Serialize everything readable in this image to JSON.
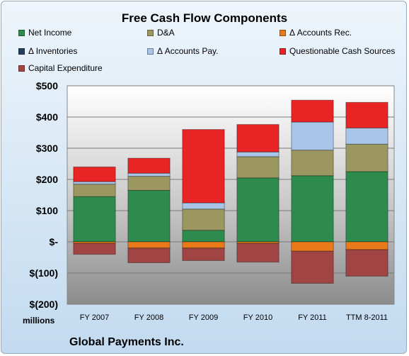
{
  "chart_data": {
    "type": "bar",
    "stacked": true,
    "title": "Free Cash Flow Components",
    "categories": [
      "FY 2007",
      "FY 2008",
      "FY 2009",
      "FY 2010",
      "FY 2011",
      "TTM 8-2011"
    ],
    "ylim": [
      -200,
      500
    ],
    "yticks": [
      -200,
      -100,
      0,
      100,
      200,
      300,
      400,
      500
    ],
    "ytick_labels": [
      "$(200)",
      "$(100)",
      "$-",
      "$100",
      "$200",
      "$300",
      "$400",
      "$500"
    ],
    "unit_label": "millions",
    "grid": true,
    "legend_position": "top",
    "series": [
      {
        "name": "Net Income",
        "color": "#2e8b4e",
        "values": [
          145,
          165,
          37,
          205,
          212,
          225
        ]
      },
      {
        "name": "D&A",
        "color": "#9c9760",
        "values": [
          40,
          45,
          68,
          68,
          82,
          88
        ]
      },
      {
        "name": "Δ Accounts Rec.",
        "color": "#e87a1a",
        "values": [
          -5,
          -20,
          -20,
          -5,
          -30,
          -25
        ]
      },
      {
        "name": "Δ Inventories",
        "color": "#243f60",
        "values": [
          0,
          0,
          0,
          0,
          0,
          0
        ]
      },
      {
        "name": "Δ Accounts Pay.",
        "color": "#a8c4e6",
        "values": [
          8,
          10,
          20,
          15,
          90,
          52
        ]
      },
      {
        "name": "Questionable Cash Sources",
        "color": "#e82424",
        "values": [
          47,
          48,
          235,
          88,
          70,
          82
        ]
      },
      {
        "name": "Capital Expenditure",
        "color": "#a04444",
        "values": [
          -35,
          -47,
          -40,
          -60,
          -103,
          -85
        ]
      }
    ]
  },
  "footer": {
    "company": "Global Payments Inc."
  }
}
